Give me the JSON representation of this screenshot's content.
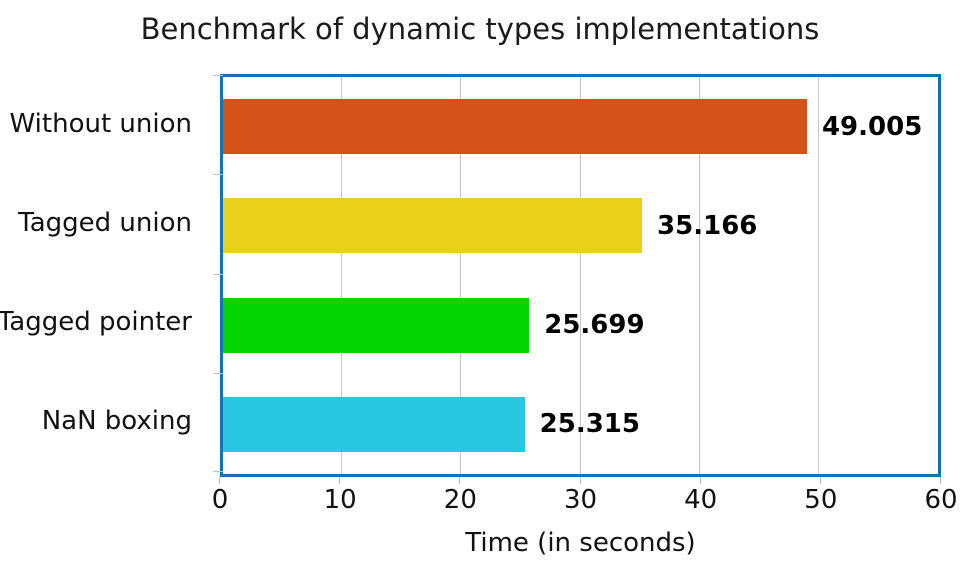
{
  "title": "Benchmark of dynamic types implementations",
  "chart_data": {
    "type": "bar",
    "orientation": "horizontal",
    "title": "Benchmark of dynamic types implementations",
    "xlabel": "Time (in seconds)",
    "categories": [
      "Without union",
      "Tagged union",
      "Tagged pointer",
      "NaN boxing"
    ],
    "values": [
      49.005,
      35.166,
      25.699,
      25.315
    ],
    "value_labels": [
      "49.005",
      "35.166",
      "25.699",
      "25.315"
    ],
    "bar_colors": [
      "#d4511a",
      "#ead11c",
      "#04d604",
      "#2ac8e0"
    ],
    "xlim": [
      0,
      60
    ],
    "xticks": [
      0,
      10,
      20,
      30,
      40,
      50,
      60
    ],
    "grid": true,
    "legend": "none",
    "plot_border_color": "#1272ba",
    "gridline_color": "#c6c6c6",
    "tick_mark_color": "#b5c4d6",
    "value_label_color": "#000000",
    "text_color": "#111111"
  }
}
